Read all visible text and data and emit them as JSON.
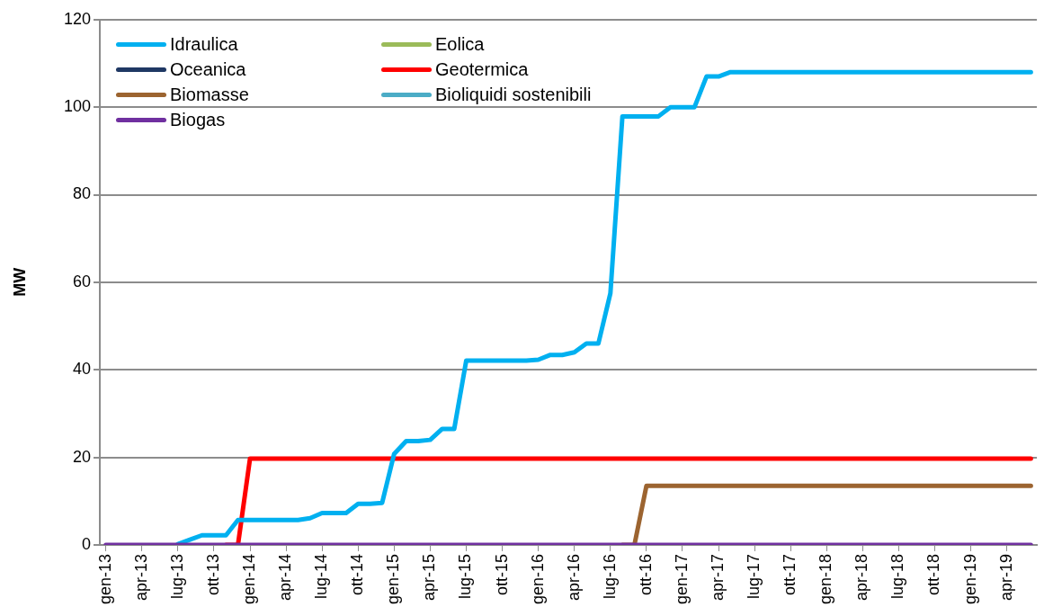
{
  "chart_data": {
    "type": "line",
    "ylabel": "MW",
    "categories": [
      "gen-13",
      null,
      null,
      "apr-13",
      null,
      null,
      "lug-13",
      null,
      null,
      "ott-13",
      null,
      null,
      "gen-14",
      null,
      null,
      "apr-14",
      null,
      null,
      "lug-14",
      null,
      null,
      "ott-14",
      null,
      null,
      "gen-15",
      null,
      null,
      "apr-15",
      null,
      null,
      "lug-15",
      null,
      null,
      "ott-15",
      null,
      null,
      "gen-16",
      null,
      null,
      "apr-16",
      null,
      null,
      "lug-16",
      null,
      null,
      "ott-16",
      null,
      null,
      "gen-17",
      null,
      null,
      "apr-17",
      null,
      null,
      "lug-17",
      null,
      null,
      "ott-17",
      null,
      null,
      "gen-18",
      null,
      null,
      "apr-18",
      null,
      null,
      "lug-18",
      null,
      null,
      "ott-18",
      null,
      null,
      "gen-19",
      null,
      null,
      "apr-19",
      null,
      null
    ],
    "series": [
      {
        "name": "Idraulica",
        "color": "#00b0f0",
        "values": [
          null,
          null,
          null,
          null,
          null,
          null,
          0.2,
          1.2,
          2.2,
          2.2,
          2.2,
          5.7,
          5.7,
          5.7,
          5.7,
          5.7,
          5.7,
          6.1,
          7.3,
          7.3,
          7.3,
          9.4,
          9.4,
          9.6,
          20.8,
          23.7,
          23.7,
          24,
          26.5,
          26.5,
          42.1,
          42.1,
          42.1,
          42.1,
          42.1,
          42.1,
          42.3,
          43.4,
          43.4,
          44,
          46,
          46,
          57.5,
          97.9,
          97.9,
          97.9,
          97.9,
          100,
          100,
          100,
          107,
          107,
          108,
          108,
          108,
          108,
          108,
          108,
          108,
          108,
          108,
          108,
          108,
          108,
          108,
          108,
          108,
          108,
          108,
          108,
          108,
          108,
          108,
          108,
          108,
          108,
          108,
          108
        ]
      },
      {
        "name": "Eolica",
        "color": "#9bbb59",
        "values": [
          null,
          null,
          null,
          null,
          null,
          null,
          null,
          null,
          null,
          null,
          null,
          null,
          null,
          null,
          null,
          null,
          null,
          null,
          null,
          null,
          null,
          null,
          null,
          null,
          null,
          null,
          null,
          null,
          null,
          null,
          null,
          null,
          null,
          null,
          null,
          null,
          null,
          null,
          null,
          null,
          null,
          null,
          null,
          null,
          null,
          null,
          null,
          null,
          null,
          null,
          null,
          null,
          null,
          null,
          null,
          null,
          null,
          null,
          null,
          null,
          null,
          null,
          null,
          null,
          null,
          null,
          null,
          null,
          null,
          null,
          null,
          null,
          null,
          null,
          null,
          null,
          null,
          null
        ]
      },
      {
        "name": "Oceanica",
        "color": "#1f3864",
        "values": [
          null,
          null,
          null,
          null,
          null,
          null,
          null,
          null,
          null,
          null,
          null,
          null,
          null,
          null,
          null,
          null,
          null,
          null,
          null,
          null,
          null,
          null,
          null,
          null,
          null,
          null,
          null,
          null,
          null,
          null,
          null,
          null,
          null,
          null,
          null,
          null,
          null,
          null,
          null,
          null,
          null,
          null,
          null,
          null,
          null,
          null,
          null,
          null,
          null,
          null,
          null,
          null,
          null,
          null,
          null,
          null,
          null,
          null,
          null,
          null,
          null,
          null,
          null,
          null,
          null,
          null,
          null,
          null,
          null,
          null,
          null,
          null,
          null,
          null,
          null,
          null,
          null,
          null
        ]
      },
      {
        "name": "Geotermica",
        "color": "#ff0000",
        "values": [
          null,
          null,
          null,
          null,
          null,
          null,
          null,
          null,
          null,
          null,
          0,
          0,
          19.7,
          19.7,
          19.7,
          19.7,
          19.7,
          19.7,
          19.7,
          19.7,
          19.7,
          19.7,
          19.7,
          19.7,
          19.7,
          19.7,
          19.7,
          19.7,
          19.7,
          19.7,
          19.7,
          19.7,
          19.7,
          19.7,
          19.7,
          19.7,
          19.7,
          19.7,
          19.7,
          19.7,
          19.7,
          19.7,
          19.7,
          19.7,
          19.7,
          19.7,
          19.7,
          19.7,
          19.7,
          19.7,
          19.7,
          19.7,
          19.7,
          19.7,
          19.7,
          19.7,
          19.7,
          19.7,
          19.7,
          19.7,
          19.7,
          19.7,
          19.7,
          19.7,
          19.7,
          19.7,
          19.7,
          19.7,
          19.7,
          19.7,
          19.7,
          19.7,
          19.7,
          19.7,
          19.7,
          19.7,
          19.7,
          19.7
        ]
      },
      {
        "name": "Biomasse",
        "color": "#9c6430",
        "values": [
          null,
          null,
          null,
          null,
          null,
          null,
          null,
          null,
          null,
          null,
          null,
          null,
          null,
          null,
          null,
          null,
          null,
          null,
          null,
          null,
          null,
          null,
          null,
          null,
          null,
          null,
          null,
          null,
          null,
          null,
          null,
          null,
          null,
          null,
          null,
          null,
          null,
          null,
          null,
          null,
          null,
          null,
          null,
          0,
          0,
          13.5,
          13.5,
          13.5,
          13.5,
          13.5,
          13.5,
          13.5,
          13.5,
          13.5,
          13.5,
          13.5,
          13.5,
          13.5,
          13.5,
          13.5,
          13.5,
          13.5,
          13.5,
          13.5,
          13.5,
          13.5,
          13.5,
          13.5,
          13.5,
          13.5,
          13.5,
          13.5,
          13.5,
          13.5,
          13.5,
          13.5,
          13.5,
          13.5
        ]
      },
      {
        "name": "Bioliquidi sostenibili",
        "color": "#4bacc6",
        "values": [
          null,
          null,
          null,
          null,
          null,
          null,
          null,
          null,
          null,
          null,
          null,
          null,
          null,
          null,
          null,
          null,
          null,
          null,
          null,
          null,
          null,
          null,
          null,
          null,
          null,
          null,
          null,
          null,
          null,
          null,
          null,
          null,
          null,
          null,
          null,
          null,
          null,
          null,
          null,
          null,
          null,
          null,
          null,
          null,
          null,
          null,
          null,
          null,
          null,
          null,
          null,
          null,
          null,
          null,
          null,
          null,
          null,
          null,
          null,
          null,
          null,
          null,
          null,
          null,
          null,
          null,
          null,
          null,
          null,
          null,
          null,
          null,
          null,
          null,
          null,
          null,
          null,
          null
        ]
      },
      {
        "name": "Biogas",
        "color": "#7030a0",
        "values": [
          0,
          0,
          0,
          0,
          0,
          0,
          0,
          0,
          0,
          0,
          0,
          0,
          0,
          0,
          0,
          0,
          0,
          0,
          0,
          0,
          0,
          0,
          0,
          0,
          0,
          0,
          0,
          0,
          0,
          0,
          0,
          0,
          0,
          0,
          0,
          0,
          0,
          0,
          0,
          0,
          0,
          0,
          0,
          0,
          0,
          0,
          0,
          0,
          0,
          0,
          0,
          0,
          0,
          0,
          0,
          0,
          0,
          0,
          0,
          0,
          0,
          0,
          0,
          0,
          0,
          0,
          0,
          0,
          0,
          0,
          0,
          0,
          0,
          0,
          0,
          0,
          0,
          0
        ]
      }
    ],
    "ylim": [
      0,
      120
    ],
    "yticks": [
      0,
      20,
      40,
      60,
      80,
      100,
      120
    ],
    "grid": "y",
    "legend": "top left",
    "marker": "none",
    "line_style": "solid"
  }
}
